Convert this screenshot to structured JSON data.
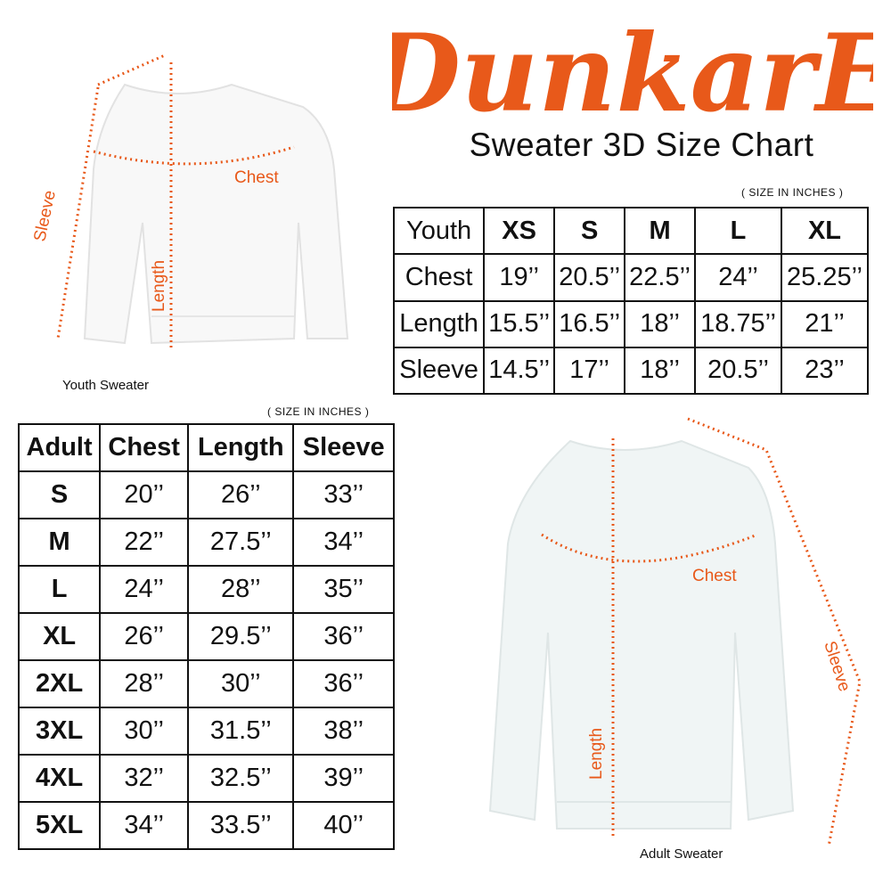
{
  "brand": {
    "logo_text": "DunkarE",
    "color": "#e8591a"
  },
  "title": "Sweater 3D Size Chart",
  "youth": {
    "units_note": "( SIZE IN INCHES )",
    "headers": [
      "Youth",
      "XS",
      "S",
      "M",
      "L",
      "XL"
    ],
    "rows": [
      [
        "Chest",
        "19’’",
        "20.5’’",
        "22.5’’",
        "24’’",
        "25.25’’"
      ],
      [
        "Length",
        "15.5’’",
        "16.5’’",
        "18’’",
        "18.75’’",
        "21’’"
      ],
      [
        "Sleeve",
        "14.5’’",
        "17’’",
        "18’’",
        "20.5’’",
        "23’’"
      ]
    ],
    "image_label": "Youth Sweater",
    "measure_labels": {
      "chest": "Chest",
      "length": "Length",
      "sleeve": "Sleeve"
    }
  },
  "adult": {
    "units_note": "( SIZE IN INCHES )",
    "headers": [
      "Adult",
      "Chest",
      "Length",
      "Sleeve"
    ],
    "rows": [
      [
        "S",
        "20’’",
        "26’’",
        "33’’"
      ],
      [
        "M",
        "22’’",
        "27.5’’",
        "34’’"
      ],
      [
        "L",
        "24’’",
        "28’’",
        "35’’"
      ],
      [
        "XL",
        "26’’",
        "29.5’’",
        "36’’"
      ],
      [
        "2XL",
        "28’’",
        "30’’",
        "36’’"
      ],
      [
        "3XL",
        "30’’",
        "31.5’’",
        "38’’"
      ],
      [
        "4XL",
        "32’’",
        "32.5’’",
        "39’’"
      ],
      [
        "5XL",
        "34’’",
        "33.5’’",
        "40’’"
      ]
    ],
    "image_label": "Adult Sweater",
    "measure_labels": {
      "chest": "Chest",
      "length": "Length",
      "sleeve": "Sleeve"
    }
  }
}
